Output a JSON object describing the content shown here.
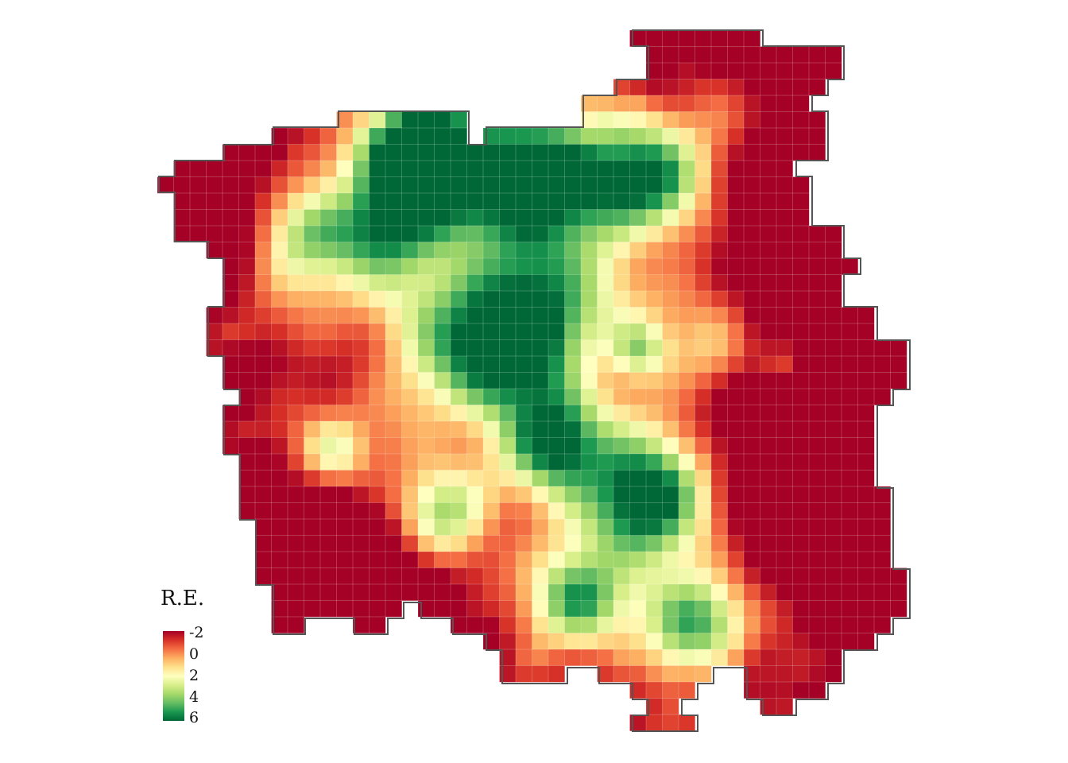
{
  "map": {
    "type": "heatmap",
    "cell_columns": 46,
    "cell_rows": 44,
    "region_fill_colors": {
      "dark_red": "#a50026",
      "red": "#d73027",
      "orange_red": "#ee5a3a",
      "orange": "#fdae61",
      "cream": "#ffffbf",
      "light_green": "#a6d96a",
      "green": "#1a9850",
      "dark_green": "#006837"
    },
    "border_color": "#555555"
  },
  "legend": {
    "title": "R.E.",
    "ticks": [
      "-2",
      "0",
      "2",
      "4",
      "6"
    ],
    "scale_min": -2,
    "scale_max": 6,
    "colors": [
      "#a50026",
      "#d73027",
      "#f46d43",
      "#fdae61",
      "#fee08b",
      "#ffffbf",
      "#d9ef8b",
      "#a6d96a",
      "#66bd63",
      "#1a9850",
      "#006837"
    ]
  }
}
